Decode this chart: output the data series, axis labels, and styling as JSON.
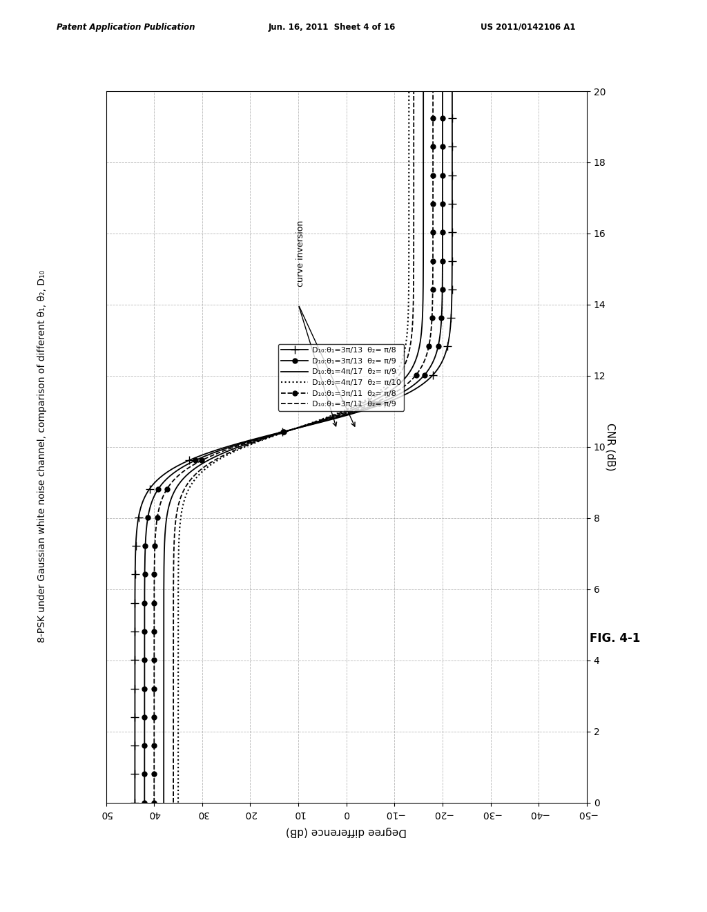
{
  "title": "8-PSK under Gaussian white noise channel, comparison of different θ₁, θ₂, D₁₀",
  "xlabel": "CNR (dB)",
  "ylabel": "Degree difference (dB)",
  "xlim": [
    0,
    20
  ],
  "ylim": [
    -50,
    50
  ],
  "xticks": [
    0,
    2,
    4,
    6,
    8,
    10,
    12,
    14,
    16,
    18,
    20
  ],
  "yticks": [
    -50,
    -40,
    -30,
    -20,
    -10,
    0,
    10,
    20,
    30,
    40,
    50
  ],
  "legend_entries": [
    "D₁₀:θ₁=3π/13  θ₂= π/8",
    "D₁₀:θ₁=3π/13  θ₂= π/9",
    "D₁₀:θ₁=4π/17  θ₂= π/9",
    "D₁₀:θ₁=4π/17  θ₂= π/10",
    "D₁₀:θ₁=3π/11  θ₂= π/8",
    "D₁₀:θ₁=3π/11  θ₂= π/9"
  ],
  "curves_params": [
    [
      44.0,
      -22.0,
      10.5,
      1.8
    ],
    [
      42.0,
      -20.0,
      10.5,
      1.8
    ],
    [
      38.0,
      -16.0,
      10.5,
      1.8
    ],
    [
      35.0,
      -13.0,
      10.5,
      1.8
    ],
    [
      40.0,
      -18.0,
      10.5,
      1.8
    ],
    [
      36.0,
      -14.0,
      10.5,
      1.8
    ]
  ],
  "line_styles": [
    "-",
    "-",
    "-",
    ":",
    "--",
    "--"
  ],
  "markers": [
    "+",
    "o",
    "",
    "",
    "o",
    ""
  ],
  "marker_sizes": [
    8,
    5,
    0,
    0,
    5,
    0
  ],
  "marker_fill": [
    "black",
    "black",
    "none",
    "none",
    "black",
    "none"
  ],
  "marker_every": 20,
  "line_widths": [
    1.3,
    1.3,
    1.3,
    1.5,
    1.3,
    1.3
  ],
  "annotation_text": "curve inversion",
  "background_color": "#ffffff",
  "grid_color": "#999999",
  "header_left": "Patent Application Publication",
  "header_mid": "Jun. 16, 2011  Sheet 4 of 16",
  "header_right": "US 2011/0142106 A1",
  "fig_label": "FIG. 4-1"
}
